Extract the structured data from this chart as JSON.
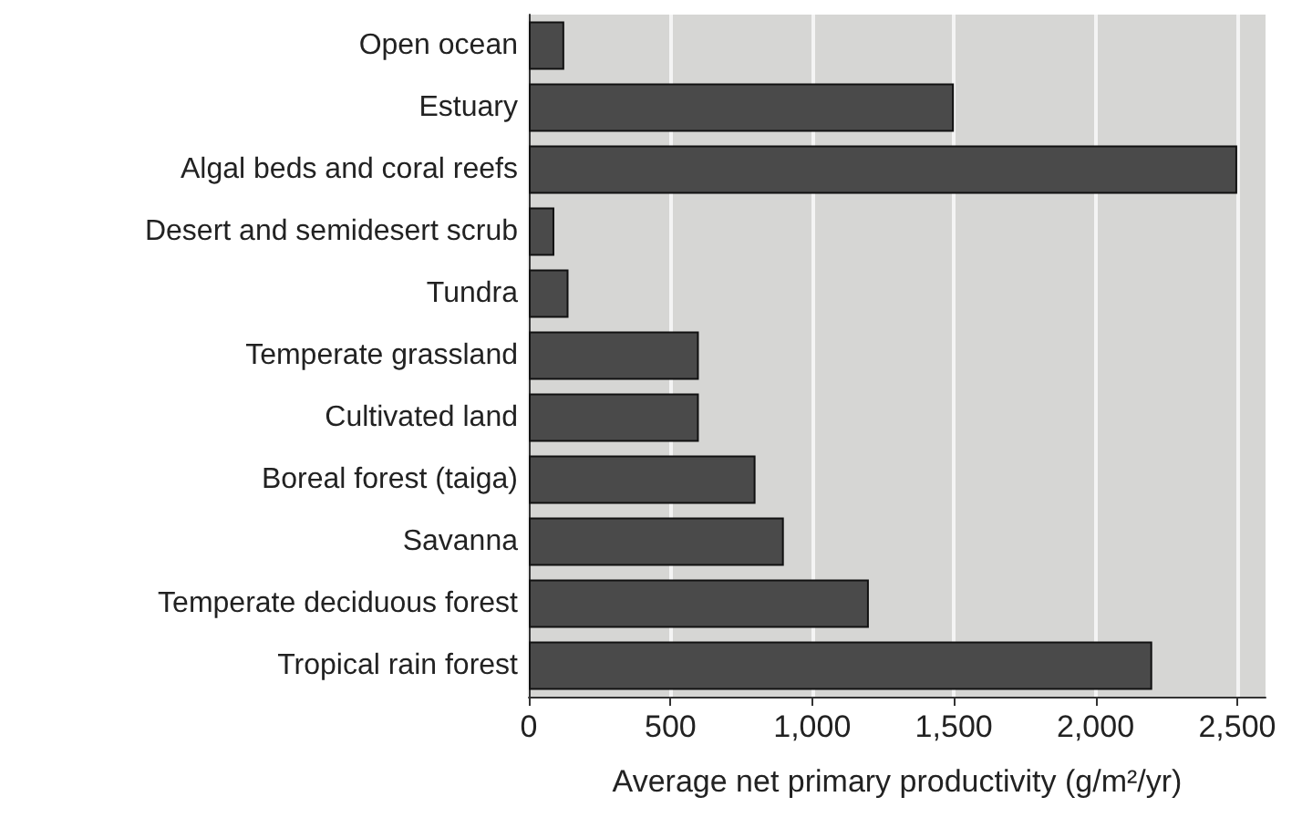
{
  "chart_data": {
    "type": "bar",
    "orientation": "horizontal",
    "categories": [
      "Open ocean",
      "Estuary",
      "Algal beds and coral reefs",
      "Desert and semidesert scrub",
      "Tundra",
      "Temperate grassland",
      "Cultivated land",
      "Boreal forest (taiga)",
      "Savanna",
      "Temperate deciduous forest",
      "Tropical rain forest"
    ],
    "values": [
      125,
      1500,
      2500,
      90,
      140,
      600,
      600,
      800,
      900,
      1200,
      2200
    ],
    "color": "#4a4a4a",
    "xlabel": "Average net primary productivity (g/m²/yr)",
    "xlim": [
      0,
      2600
    ],
    "xticks": [
      0,
      500,
      {
        "value": 1000,
        "label": "1,000"
      },
      {
        "value": 1500,
        "label": "1,500"
      },
      {
        "value": 2000,
        "label": "2,000"
      },
      {
        "value": 2500,
        "label": "2,500"
      }
    ],
    "grid": "x"
  }
}
